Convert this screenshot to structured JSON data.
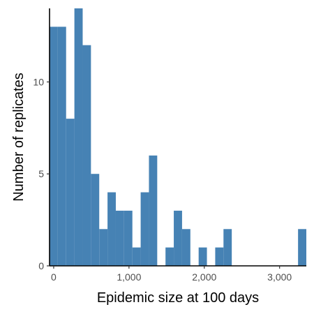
{
  "chart_data": {
    "type": "bar",
    "title": "",
    "xlabel": "Epidemic size at 100 days",
    "ylabel": "Number of replicates",
    "bin_width": 110,
    "bins": [
      {
        "x0": -55,
        "x1": 55,
        "count": 13
      },
      {
        "x0": 55,
        "x1": 165,
        "count": 13
      },
      {
        "x0": 165,
        "x1": 275,
        "count": 8
      },
      {
        "x0": 275,
        "x1": 385,
        "count": 14
      },
      {
        "x0": 385,
        "x1": 495,
        "count": 12
      },
      {
        "x0": 495,
        "x1": 605,
        "count": 5
      },
      {
        "x0": 605,
        "x1": 715,
        "count": 2
      },
      {
        "x0": 715,
        "x1": 825,
        "count": 4
      },
      {
        "x0": 825,
        "x1": 935,
        "count": 3
      },
      {
        "x0": 935,
        "x1": 1045,
        "count": 3
      },
      {
        "x0": 1045,
        "x1": 1155,
        "count": 1
      },
      {
        "x0": 1155,
        "x1": 1265,
        "count": 4
      },
      {
        "x0": 1265,
        "x1": 1375,
        "count": 6
      },
      {
        "x0": 1375,
        "x1": 1485,
        "count": 0
      },
      {
        "x0": 1485,
        "x1": 1595,
        "count": 1
      },
      {
        "x0": 1595,
        "x1": 1705,
        "count": 3
      },
      {
        "x0": 1705,
        "x1": 1815,
        "count": 2
      },
      {
        "x0": 1815,
        "x1": 1925,
        "count": 0
      },
      {
        "x0": 1925,
        "x1": 2035,
        "count": 1
      },
      {
        "x0": 2035,
        "x1": 2145,
        "count": 0
      },
      {
        "x0": 2145,
        "x1": 2255,
        "count": 1
      },
      {
        "x0": 2255,
        "x1": 2365,
        "count": 2
      },
      {
        "x0": 2365,
        "x1": 2475,
        "count": 0
      },
      {
        "x0": 2475,
        "x1": 2585,
        "count": 0
      },
      {
        "x0": 2585,
        "x1": 2695,
        "count": 0
      },
      {
        "x0": 2695,
        "x1": 2805,
        "count": 0
      },
      {
        "x0": 2805,
        "x1": 2915,
        "count": 0
      },
      {
        "x0": 2915,
        "x1": 3025,
        "count": 0
      },
      {
        "x0": 3025,
        "x1": 3135,
        "count": 0
      },
      {
        "x0": 3135,
        "x1": 3245,
        "count": 0
      },
      {
        "x0": 3245,
        "x1": 3355,
        "count": 2
      }
    ],
    "xlim": [
      -55,
      3355
    ],
    "ylim": [
      0,
      14
    ],
    "x_ticks": [
      {
        "value": 0,
        "label": "0"
      },
      {
        "value": 1000,
        "label": "1,000"
      },
      {
        "value": 2000,
        "label": "2,000"
      },
      {
        "value": 3000,
        "label": "3,000"
      }
    ],
    "y_ticks": [
      {
        "value": 0,
        "label": "0"
      },
      {
        "value": 5,
        "label": "5"
      },
      {
        "value": 10,
        "label": "10"
      }
    ],
    "grid": false,
    "legend": "none",
    "colors": {
      "bar_fill": "#4682b4",
      "axis_line": "#000000",
      "tick_text": "#4d4d4d",
      "title_text": "#000000"
    }
  }
}
